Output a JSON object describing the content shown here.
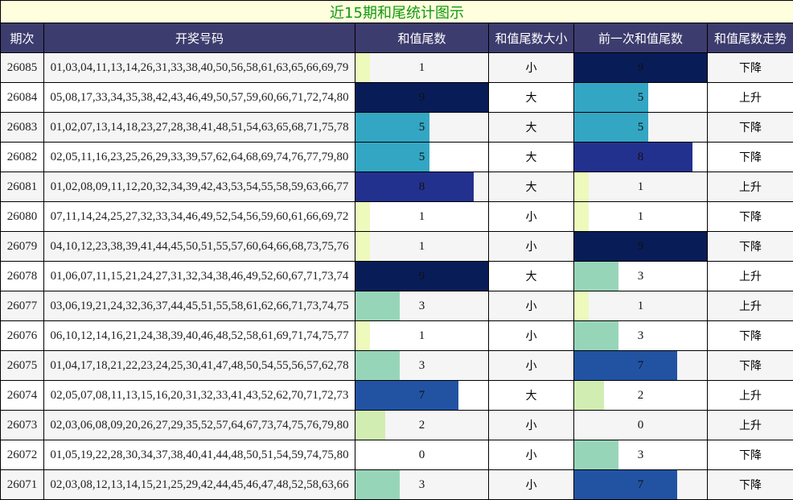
{
  "title": "近15期和尾统计图示",
  "headers": [
    "期次",
    "开奖号码",
    "和值尾数",
    "和值尾数大小",
    "前一次和值尾数",
    "和值尾数走势"
  ],
  "colors": {
    "1": "#eef9bc",
    "2": "#d1edb2",
    "3": "#97d5b9",
    "5": "#33a6c3",
    "7": "#2253a3",
    "8": "#23318e",
    "9": "#081d58",
    "0": "transparent"
  },
  "rows": [
    {
      "period": "26085",
      "numbers": "01,03,04,11,13,14,26,31,33,38,40,50,56,58,61,63,65,66,69,79",
      "tail": "1",
      "size": "小",
      "prev": "9",
      "trend": "下降"
    },
    {
      "period": "26084",
      "numbers": "05,08,17,33,34,35,38,42,43,46,49,50,57,59,60,66,71,72,74,80",
      "tail": "9",
      "size": "大",
      "prev": "5",
      "trend": "上升"
    },
    {
      "period": "26083",
      "numbers": "01,02,07,13,14,18,23,27,28,38,41,48,51,54,63,65,68,71,75,78",
      "tail": "5",
      "size": "大",
      "prev": "5",
      "trend": "下降"
    },
    {
      "period": "26082",
      "numbers": "02,05,11,16,23,25,26,29,33,39,57,62,64,68,69,74,76,77,79,80",
      "tail": "5",
      "size": "大",
      "prev": "8",
      "trend": "下降"
    },
    {
      "period": "26081",
      "numbers": "01,02,08,09,11,12,20,32,34,39,42,43,53,54,55,58,59,63,66,77",
      "tail": "8",
      "size": "大",
      "prev": "1",
      "trend": "上升"
    },
    {
      "period": "26080",
      "numbers": "07,11,14,24,25,27,32,33,34,46,49,52,54,56,59,60,61,66,69,72",
      "tail": "1",
      "size": "小",
      "prev": "1",
      "trend": "下降"
    },
    {
      "period": "26079",
      "numbers": "04,10,12,23,38,39,41,44,45,50,51,55,57,60,64,66,68,73,75,76",
      "tail": "1",
      "size": "小",
      "prev": "9",
      "trend": "下降"
    },
    {
      "period": "26078",
      "numbers": "01,06,07,11,15,21,24,27,31,32,34,38,46,49,52,60,67,71,73,74",
      "tail": "9",
      "size": "大",
      "prev": "3",
      "trend": "上升"
    },
    {
      "period": "26077",
      "numbers": "03,06,19,21,24,32,36,37,44,45,51,55,58,61,62,66,71,73,74,75",
      "tail": "3",
      "size": "小",
      "prev": "1",
      "trend": "上升"
    },
    {
      "period": "26076",
      "numbers": "06,10,12,14,16,21,24,38,39,40,46,48,52,58,61,69,71,74,75,77",
      "tail": "1",
      "size": "小",
      "prev": "3",
      "trend": "下降"
    },
    {
      "period": "26075",
      "numbers": "01,04,17,18,21,22,23,24,25,30,41,47,48,50,54,55,56,57,62,78",
      "tail": "3",
      "size": "小",
      "prev": "7",
      "trend": "下降"
    },
    {
      "period": "26074",
      "numbers": "02,05,07,08,11,13,15,16,20,31,32,33,41,43,52,62,70,71,72,73",
      "tail": "7",
      "size": "大",
      "prev": "2",
      "trend": "上升"
    },
    {
      "period": "26073",
      "numbers": "02,03,06,08,09,20,26,27,29,35,52,57,64,67,73,74,75,76,79,80",
      "tail": "2",
      "size": "小",
      "prev": "0",
      "trend": "上升"
    },
    {
      "period": "26072",
      "numbers": "01,05,19,22,28,30,34,37,38,40,41,44,48,50,51,54,59,74,75,80",
      "tail": "0",
      "size": "小",
      "prev": "3",
      "trend": "下降"
    },
    {
      "period": "26071",
      "numbers": "02,03,08,12,13,14,15,21,25,29,42,44,45,46,47,48,52,58,63,66",
      "tail": "3",
      "size": "小",
      "prev": "7",
      "trend": "下降"
    }
  ]
}
